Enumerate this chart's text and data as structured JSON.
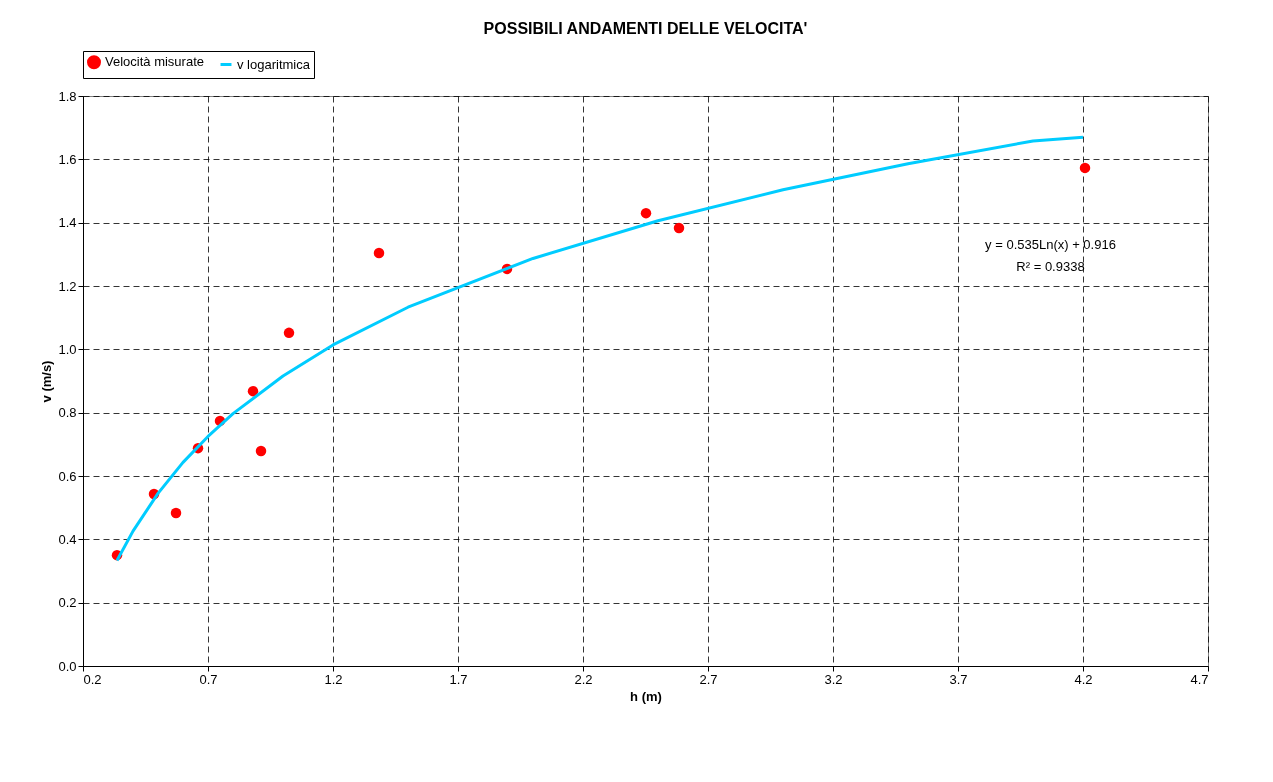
{
  "chart_data": {
    "type": "scatter",
    "title": "POSSIBILI ANDAMENTI DELLE VELOCITA'",
    "xlabel": "h (m)",
    "ylabel": "v (m/s)",
    "series": [
      {
        "name": "Velocità misurate",
        "marker": "circle",
        "color": "#ff0000",
        "x": [
          0.336,
          0.484,
          0.572,
          0.66,
          0.748,
          0.88,
          0.912,
          1.024,
          1.384,
          1.896,
          2.452,
          2.584,
          4.208
        ],
        "values": [
          0.35,
          0.543,
          0.483,
          0.688,
          0.774,
          0.868,
          0.679,
          1.052,
          1.304,
          1.254,
          1.43,
          1.383,
          1.573
        ]
      },
      {
        "name": "v logaritmica",
        "type": "line",
        "marker": "none",
        "line_style": "solid",
        "color": "#00ccff",
        "x": [
          0.336,
          0.4,
          0.5,
          0.6,
          0.7,
          0.8,
          1.0,
          1.2,
          1.5,
          2.0,
          2.5,
          3.0,
          3.5,
          4.0,
          4.2
        ],
        "values": [
          0.333,
          0.426,
          0.545,
          0.643,
          0.725,
          0.797,
          0.916,
          1.014,
          1.133,
          1.287,
          1.406,
          1.504,
          1.586,
          1.658,
          1.67
        ]
      }
    ],
    "xlim": [
      0.2,
      4.7
    ],
    "xticks": [
      0.2,
      0.7,
      1.2,
      1.7,
      2.2,
      2.7,
      3.2,
      3.7,
      4.2,
      4.7
    ],
    "ylim": [
      0,
      1.8
    ],
    "yticks": [
      {
        "value": 0,
        "label": "0.0"
      },
      0.2,
      0.4,
      0.6,
      0.8,
      {
        "value": 1,
        "label": "1.0"
      },
      1.2,
      1.4,
      1.6,
      1.8
    ],
    "grid": true,
    "legend": "top",
    "annotations": [
      "y = 0.535Ln(x) + 0.916",
      "R² = 0.9338"
    ]
  }
}
